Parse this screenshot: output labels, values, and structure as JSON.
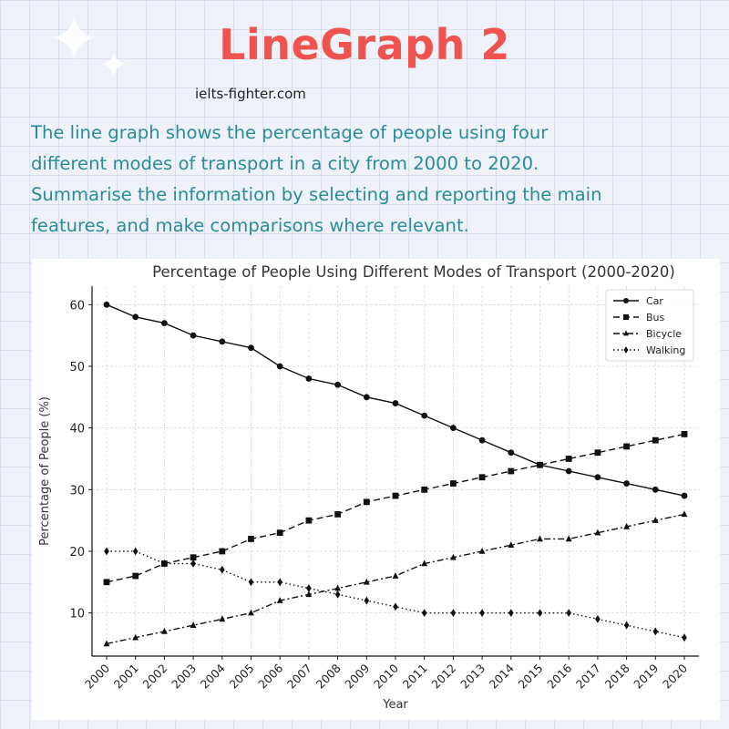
{
  "header": {
    "title": "LineGraph 2",
    "source": "ielts-fighter.com",
    "prompt_lines": [
      "The line graph shows the percentage of people using four",
      "different modes of transport in a city from 2000 to 2020.",
      "Summarise the information by selecting and reporting the main",
      "features, and make comparisons where relevant."
    ]
  },
  "colors": {
    "title": "#ef5350",
    "prompt": "#2a8c97",
    "line": "#111111"
  },
  "chart_data": {
    "type": "line",
    "title": "Percentage of People Using Different Modes of Transport (2000-2020)",
    "xlabel": "Year",
    "ylabel": "Percentage of People (%)",
    "x": [
      2000,
      2001,
      2002,
      2003,
      2004,
      2005,
      2006,
      2007,
      2008,
      2009,
      2010,
      2011,
      2012,
      2013,
      2014,
      2015,
      2016,
      2017,
      2018,
      2019,
      2020
    ],
    "y_ticks": [
      10,
      20,
      30,
      40,
      50,
      60
    ],
    "ylim": [
      3,
      63
    ],
    "grid": true,
    "legend_position": "top-right",
    "series": [
      {
        "name": "Car",
        "marker": "circle",
        "dash": "solid",
        "values": [
          60,
          58,
          57,
          55,
          54,
          53,
          50,
          48,
          47,
          45,
          44,
          42,
          40,
          38,
          36,
          34,
          33,
          32,
          31,
          30,
          29
        ]
      },
      {
        "name": "Bus",
        "marker": "square",
        "dash": "dashed",
        "values": [
          15,
          16,
          18,
          19,
          20,
          22,
          23,
          25,
          26,
          28,
          29,
          30,
          31,
          32,
          33,
          34,
          35,
          36,
          37,
          38,
          39
        ]
      },
      {
        "name": "Bicycle",
        "marker": "triangle",
        "dash": "dashdot",
        "values": [
          5,
          6,
          7,
          8,
          9,
          10,
          12,
          13,
          14,
          15,
          16,
          18,
          19,
          20,
          21,
          22,
          22,
          23,
          24,
          25,
          26
        ]
      },
      {
        "name": "Walking",
        "marker": "diamond",
        "dash": "dotted",
        "values": [
          20,
          20,
          18,
          18,
          17,
          15,
          15,
          14,
          13,
          12,
          11,
          10,
          10,
          10,
          10,
          10,
          10,
          9,
          8,
          7,
          6
        ]
      }
    ]
  }
}
